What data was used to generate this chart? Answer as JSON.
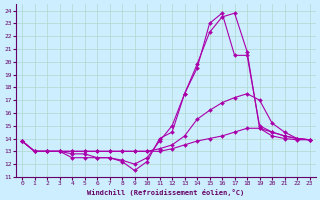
{
  "xlabel": "Windchill (Refroidissement éolien,°C)",
  "background_color": "#cceeff",
  "grid_color": "#b0d8cc",
  "line_color": "#aa00aa",
  "xlim": [
    -0.5,
    23.5
  ],
  "ylim": [
    11,
    24.5
  ],
  "xticks": [
    0,
    1,
    2,
    3,
    4,
    5,
    6,
    7,
    8,
    9,
    10,
    11,
    12,
    13,
    14,
    15,
    16,
    17,
    18,
    19,
    20,
    21,
    22,
    23
  ],
  "yticks": [
    11,
    12,
    13,
    14,
    15,
    16,
    17,
    18,
    19,
    20,
    21,
    22,
    23,
    24
  ],
  "lines": [
    {
      "x": [
        0,
        1,
        2,
        3,
        4,
        5,
        6,
        7,
        8,
        9,
        10,
        11,
        12,
        13,
        14,
        15,
        16,
        17,
        18,
        19,
        20,
        21,
        22,
        23
      ],
      "y": [
        13.8,
        13.0,
        13.0,
        13.0,
        12.8,
        12.8,
        12.5,
        12.5,
        12.3,
        12.0,
        12.5,
        13.8,
        15.0,
        17.5,
        19.8,
        22.3,
        23.5,
        23.8,
        20.8,
        14.8,
        14.2,
        14.0,
        13.9,
        13.9
      ]
    },
    {
      "x": [
        0,
        1,
        2,
        3,
        4,
        5,
        6,
        7,
        8,
        9,
        10,
        11,
        12,
        13,
        14,
        15,
        16,
        17,
        18,
        19,
        20,
        21,
        22,
        23
      ],
      "y": [
        13.8,
        13.0,
        13.0,
        13.0,
        13.0,
        13.0,
        13.0,
        13.0,
        13.0,
        13.0,
        13.0,
        13.2,
        13.5,
        14.2,
        15.5,
        16.2,
        16.8,
        17.2,
        17.5,
        17.0,
        15.2,
        14.5,
        14.0,
        13.9
      ]
    },
    {
      "x": [
        0,
        1,
        2,
        3,
        4,
        5,
        6,
        7,
        8,
        9,
        10,
        11,
        12,
        13,
        14,
        15,
        16,
        17,
        18,
        19,
        20,
        21,
        22,
        23
      ],
      "y": [
        13.8,
        13.0,
        13.0,
        13.0,
        12.5,
        12.5,
        12.5,
        12.5,
        12.2,
        11.5,
        12.2,
        14.0,
        14.5,
        17.5,
        19.5,
        23.0,
        23.8,
        20.5,
        20.5,
        15.0,
        14.5,
        14.2,
        14.0,
        13.9
      ]
    },
    {
      "x": [
        0,
        1,
        2,
        3,
        4,
        5,
        6,
        7,
        8,
        9,
        10,
        11,
        12,
        13,
        14,
        15,
        16,
        17,
        18,
        19,
        20,
        21,
        22,
        23
      ],
      "y": [
        13.8,
        13.0,
        13.0,
        13.0,
        13.0,
        13.0,
        13.0,
        13.0,
        13.0,
        13.0,
        13.0,
        13.0,
        13.2,
        13.5,
        13.8,
        14.0,
        14.2,
        14.5,
        14.8,
        14.8,
        14.5,
        14.2,
        14.0,
        13.9
      ]
    }
  ]
}
